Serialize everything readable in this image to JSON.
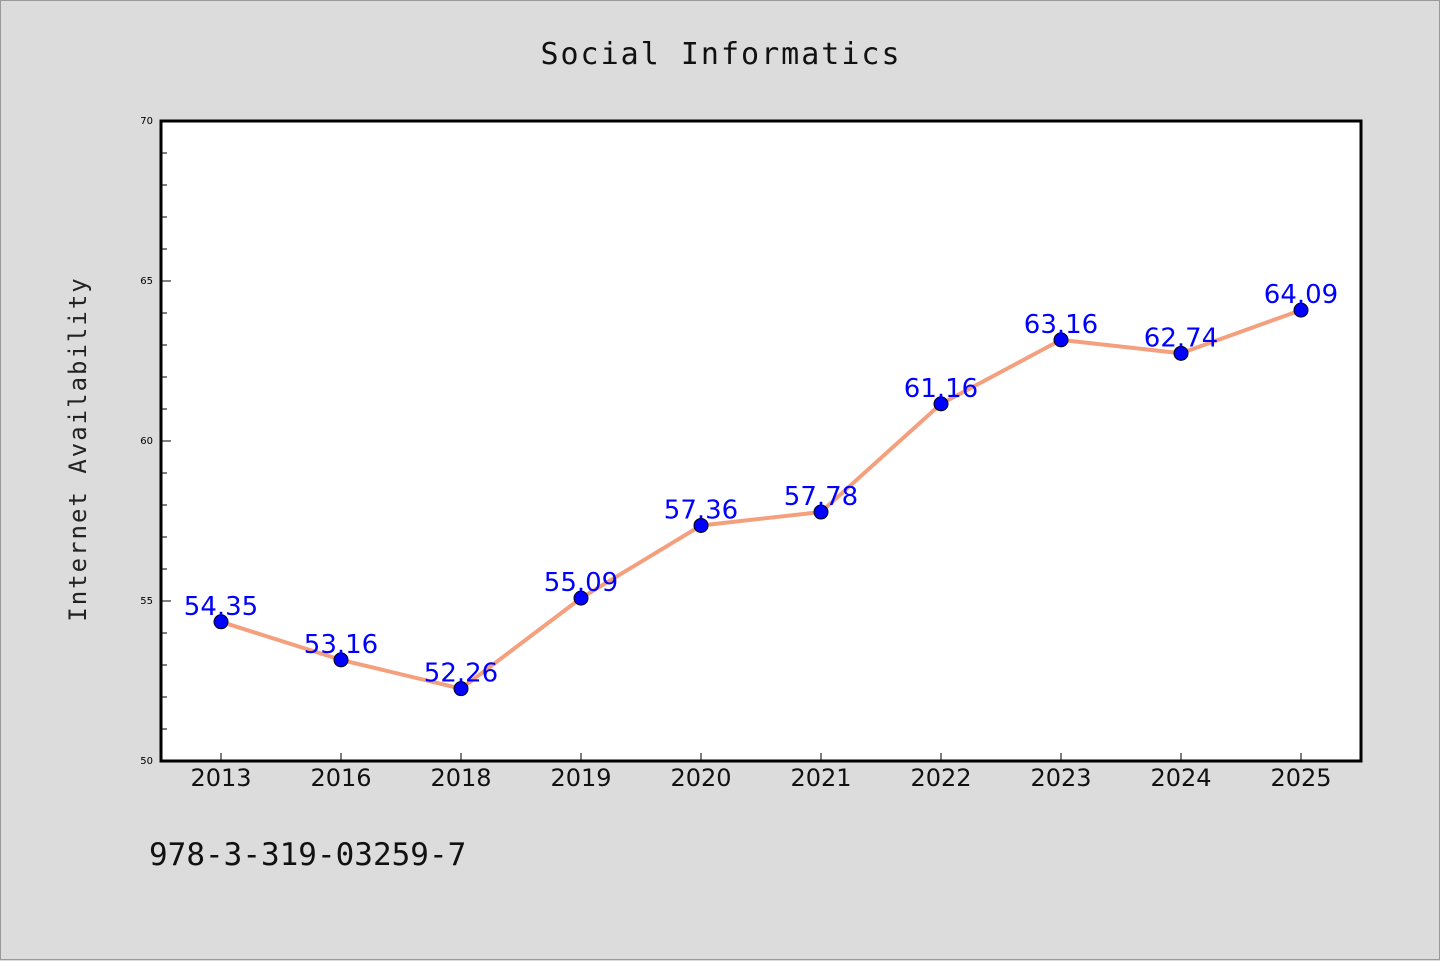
{
  "chart_data": {
    "type": "line",
    "title": "Social Informatics",
    "xlabel": "",
    "ylabel": "Internet Availability",
    "categories": [
      "2013",
      "2016",
      "2018",
      "2019",
      "2020",
      "2021",
      "2022",
      "2023",
      "2024",
      "2025"
    ],
    "series": [
      {
        "values": [
          54.35,
          53.16,
          52.26,
          55.09,
          57.36,
          57.78,
          61.16,
          63.16,
          62.74,
          64.09
        ],
        "labels": [
          "54.35",
          "53.16",
          "52.26",
          "55.09",
          "57.36",
          "57.78",
          "61.16",
          "63.16",
          "62.74",
          "64.09"
        ],
        "line_color": "#f4a07e",
        "marker_color": "#0000ff"
      }
    ],
    "ylim": [
      50,
      70
    ],
    "yticks": [
      "50",
      "55",
      "60",
      "65",
      "70"
    ],
    "grid": false,
    "legend": "none"
  },
  "footer": {
    "isbn": "978-3-319-03259-7"
  }
}
